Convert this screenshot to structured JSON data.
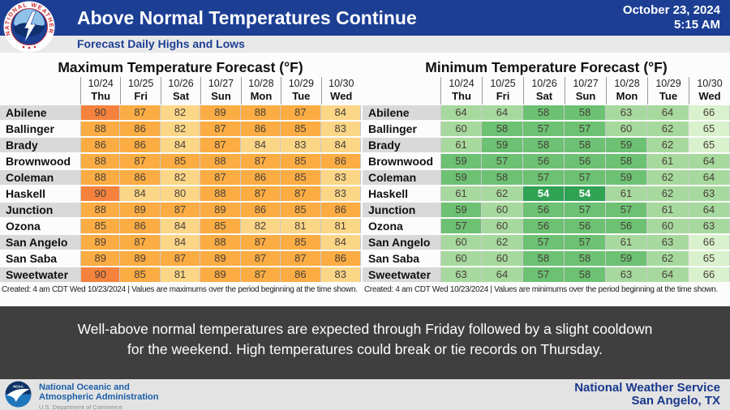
{
  "header": {
    "title": "Above Normal Temperatures Continue",
    "date": "October 23, 2024",
    "time": "5:15 AM",
    "subtitle": "Forecast Daily Highs and Lows"
  },
  "colors": {
    "header_blue": "#1C3F94",
    "band_gray": "#3F3F3F",
    "max_hot": "#F5823C",
    "max_warm": "#FBAC43",
    "max_mild": "#FCD687",
    "min_coldest": "#2FA254",
    "min_cool": "#6CC173",
    "min_mild": "#A7D99E",
    "min_warm": "#D9F1CC"
  },
  "chart_data": [
    {
      "type": "heatmap",
      "title": "Maximum Temperature Forecast (°F)",
      "footnote": "Created: 4 am CDT Wed 10/23/2024  |  Values are maximums over the period beginning at the time shown.",
      "categories": [
        {
          "date": "10/24",
          "day": "Thu"
        },
        {
          "date": "10/25",
          "day": "Fri"
        },
        {
          "date": "10/26",
          "day": "Sat"
        },
        {
          "date": "10/27",
          "day": "Sun"
        },
        {
          "date": "10/28",
          "day": "Mon"
        },
        {
          "date": "10/29",
          "day": "Tue"
        },
        {
          "date": "10/30",
          "day": "Wed"
        }
      ],
      "color_rules": {
        "op": "gte",
        "steps": [
          {
            "threshold": 90,
            "bg": "#F5823C"
          },
          {
            "threshold": 85,
            "bg": "#FBAC43"
          },
          {
            "threshold": -999,
            "bg": "#FCD687"
          }
        ]
      },
      "rows": [
        {
          "city": "Abilene",
          "values": [
            90,
            87,
            82,
            89,
            88,
            87,
            84
          ]
        },
        {
          "city": "Ballinger",
          "values": [
            88,
            86,
            82,
            87,
            86,
            85,
            83
          ]
        },
        {
          "city": "Brady",
          "values": [
            86,
            86,
            84,
            87,
            84,
            83,
            84
          ]
        },
        {
          "city": "Brownwood",
          "values": [
            88,
            87,
            85,
            88,
            87,
            85,
            86
          ]
        },
        {
          "city": "Coleman",
          "values": [
            88,
            86,
            82,
            87,
            86,
            85,
            83
          ]
        },
        {
          "city": "Haskell",
          "values": [
            90,
            84,
            80,
            88,
            87,
            87,
            83
          ]
        },
        {
          "city": "Junction",
          "values": [
            88,
            89,
            87,
            89,
            86,
            85,
            86
          ]
        },
        {
          "city": "Ozona",
          "values": [
            85,
            86,
            84,
            85,
            82,
            81,
            81
          ]
        },
        {
          "city": "San Angelo",
          "values": [
            89,
            87,
            84,
            88,
            87,
            85,
            84
          ]
        },
        {
          "city": "San Saba",
          "values": [
            89,
            89,
            87,
            89,
            87,
            87,
            86
          ]
        },
        {
          "city": "Sweetwater",
          "values": [
            90,
            85,
            81,
            89,
            87,
            86,
            83
          ]
        }
      ]
    },
    {
      "type": "heatmap",
      "title": "Minimum Temperature Forecast (°F)",
      "footnote": "Created: 4 am CDT Wed 10/23/2024  |  Values are minimums over the period beginning at the time shown.",
      "categories": [
        {
          "date": "10/24",
          "day": "Thu"
        },
        {
          "date": "10/25",
          "day": "Fri"
        },
        {
          "date": "10/26",
          "day": "Sat"
        },
        {
          "date": "10/27",
          "day": "Sun"
        },
        {
          "date": "10/28",
          "day": "Mon"
        },
        {
          "date": "10/29",
          "day": "Tue"
        },
        {
          "date": "10/30",
          "day": "Wed"
        }
      ],
      "color_rules": {
        "op": "lte",
        "steps": [
          {
            "threshold": 55,
            "bg": "#2FA254",
            "fg": "#FFFFFF",
            "bold": true
          },
          {
            "threshold": 59,
            "bg": "#6CC173"
          },
          {
            "threshold": 64,
            "bg": "#A7D99E"
          },
          {
            "threshold": 999,
            "bg": "#D9F1CC"
          }
        ]
      },
      "rows": [
        {
          "city": "Abilene",
          "values": [
            64,
            64,
            58,
            58,
            63,
            64,
            66
          ]
        },
        {
          "city": "Ballinger",
          "values": [
            60,
            58,
            57,
            57,
            60,
            62,
            65
          ]
        },
        {
          "city": "Brady",
          "values": [
            61,
            59,
            58,
            58,
            59,
            62,
            65
          ]
        },
        {
          "city": "Brownwood",
          "values": [
            59,
            57,
            56,
            56,
            58,
            61,
            64
          ]
        },
        {
          "city": "Coleman",
          "values": [
            59,
            58,
            57,
            57,
            59,
            62,
            64
          ]
        },
        {
          "city": "Haskell",
          "values": [
            61,
            62,
            54,
            54,
            61,
            62,
            63
          ]
        },
        {
          "city": "Junction",
          "values": [
            59,
            60,
            56,
            57,
            57,
            61,
            64
          ]
        },
        {
          "city": "Ozona",
          "values": [
            57,
            60,
            56,
            56,
            56,
            60,
            63
          ]
        },
        {
          "city": "San Angelo",
          "values": [
            60,
            62,
            57,
            57,
            61,
            63,
            66
          ]
        },
        {
          "city": "San Saba",
          "values": [
            60,
            60,
            58,
            58,
            59,
            62,
            65
          ]
        },
        {
          "city": "Sweetwater",
          "values": [
            63,
            64,
            57,
            58,
            63,
            64,
            66
          ]
        }
      ]
    }
  ],
  "summary": {
    "line1": "Well-above normal temperatures are expected through Friday followed by a slight cooldown",
    "line2": "for the weekend. High temperatures could break or tie records on Thursday."
  },
  "footer": {
    "noaa_line1": "National Oceanic and",
    "noaa_line2": "Atmospheric Administration",
    "noaa_line3": "U.S. Department of Commerce",
    "nws_line1": "National Weather Service",
    "nws_line2": "San Angelo, TX"
  },
  "icons": {
    "nws_seal": "nws-seal-icon",
    "noaa_seal": "noaa-seal-icon"
  }
}
